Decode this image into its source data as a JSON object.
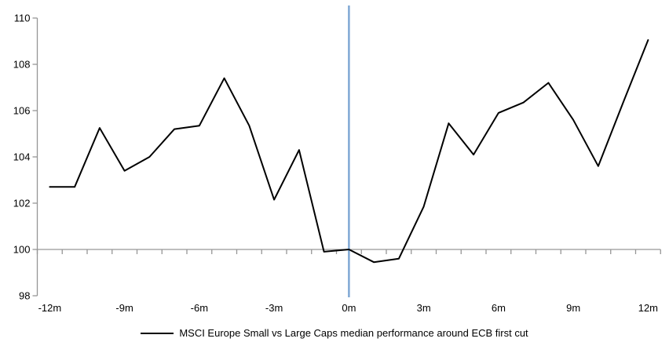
{
  "chart_data": {
    "type": "line",
    "title": "",
    "xlabel": "",
    "ylabel": "",
    "x": [
      -12,
      -11,
      -10,
      -9,
      -8,
      -7,
      -6,
      -5,
      -4,
      -3,
      -2,
      -1,
      0,
      1,
      2,
      3,
      4,
      5,
      6,
      7,
      8,
      9,
      10,
      11,
      12
    ],
    "series": [
      {
        "name": "MSCI Europe Small vs Large Caps median performance around ECB first cut",
        "values": [
          102.7,
          102.7,
          105.25,
          103.4,
          104.0,
          105.2,
          105.35,
          107.4,
          105.35,
          102.15,
          104.3,
          99.9,
          100.0,
          99.45,
          99.6,
          101.85,
          105.45,
          104.1,
          105.9,
          106.35,
          107.2,
          105.6,
          103.6,
          106.35,
          109.05
        ]
      }
    ],
    "xtick_months": [
      -12,
      -9,
      -6,
      -3,
      0,
      3,
      6,
      9,
      12
    ],
    "xtick_labels": [
      "-12m",
      "-9m",
      "-6m",
      "-3m",
      "0m",
      "3m",
      "6m",
      "9m",
      "12m"
    ],
    "ytick_values": [
      98,
      100,
      102,
      104,
      106,
      108,
      110
    ],
    "ylim": [
      98,
      110
    ],
    "baseline_y": 100,
    "event_line_x": 0,
    "grid": false,
    "legend_position": "bottom",
    "colors": {
      "series": "#000000",
      "event_line": "#7FA8D4",
      "axis": "#969696",
      "text": "#000000"
    }
  }
}
